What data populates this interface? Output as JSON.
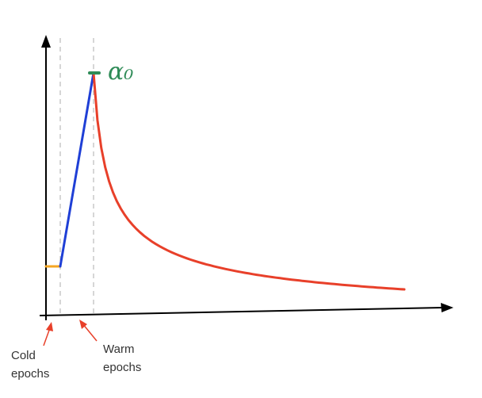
{
  "chart_data": {
    "type": "line",
    "title": "",
    "xlabel": "",
    "ylabel": "",
    "annotations": {
      "peak_label": "α₀",
      "cold_label_line1": "Cold",
      "cold_label_line2": "epochs",
      "warm_label_line1": "Warm",
      "warm_label_line2": "epochs"
    },
    "phases": {
      "cold_end": 1,
      "warm_end": 4,
      "decay_end": 30
    },
    "levels": {
      "base": 0.2,
      "peak": 1.0,
      "final": 0.1
    },
    "colors": {
      "cold": "#f5a623",
      "warm": "#1f3fd6",
      "decay": "#e8402a",
      "peak_marker": "#2e8b57",
      "arrow": "#e8402a",
      "guide": "#bbbbbb",
      "axis": "#000000"
    },
    "grid": false
  }
}
